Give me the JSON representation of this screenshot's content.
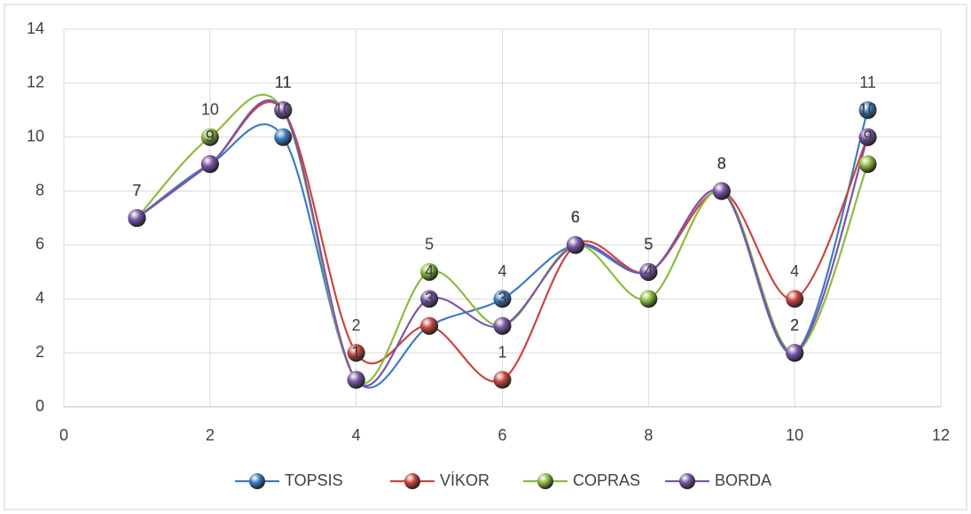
{
  "chart_data": {
    "type": "line",
    "x": [
      1,
      2,
      3,
      4,
      5,
      6,
      7,
      8,
      9,
      10,
      11
    ],
    "series": [
      {
        "name": "TOPSIS",
        "color": "#3d7cc4",
        "values": [
          7,
          9,
          10,
          1,
          3,
          4,
          6,
          5,
          8,
          2,
          11
        ]
      },
      {
        "name": "VİKOR",
        "color": "#c9463f",
        "values": [
          7,
          9,
          11,
          2,
          3,
          1,
          6,
          5,
          8,
          4,
          10
        ]
      },
      {
        "name": "COPRAS",
        "color": "#8dbb3f",
        "values": [
          7,
          10,
          11,
          1,
          5,
          3,
          6,
          4,
          8,
          2,
          9
        ]
      },
      {
        "name": "BORDA",
        "color": "#7a55aa",
        "values": [
          7,
          9,
          11,
          1,
          4,
          3,
          6,
          5,
          8,
          2,
          10
        ]
      }
    ],
    "xlim": [
      0,
      12
    ],
    "xticks": [
      0,
      2,
      4,
      6,
      8,
      10,
      12
    ],
    "ylim": [
      0,
      14
    ],
    "yticks": [
      0,
      2,
      4,
      6,
      8,
      10,
      12,
      14
    ],
    "grid": true,
    "smooth": true,
    "legend": "bottom"
  }
}
